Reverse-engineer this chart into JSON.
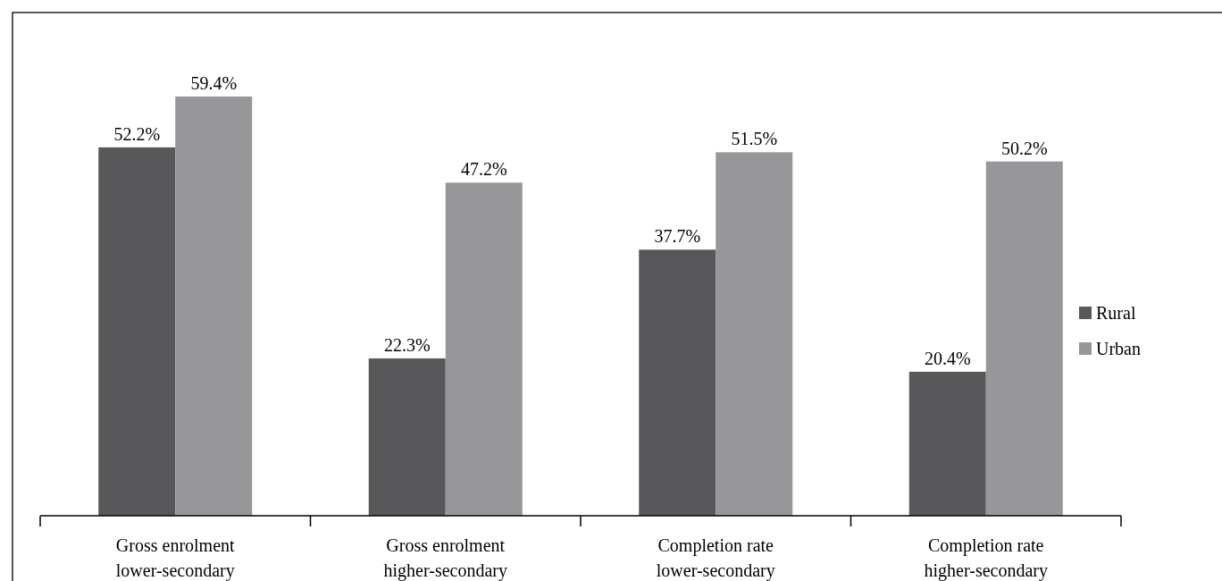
{
  "chart_data": {
    "type": "bar",
    "categories": [
      "Gross enrolment\nlower-secondary",
      "Gross enrolment\nhigher-secondary",
      "Completion rate\nlower-secondary",
      "Completion rate\nhigher-secondary"
    ],
    "series": [
      {
        "name": "Rural",
        "color": "#58585a",
        "values": [
          52.2,
          22.3,
          37.7,
          20.4
        ],
        "value_labels": [
          "52.2%",
          "22.3%",
          "37.7%",
          "20.4%"
        ]
      },
      {
        "name": "Urban",
        "color": "#97979a",
        "values": [
          59.4,
          47.2,
          51.5,
          50.2
        ],
        "value_labels": [
          "59.4%",
          "47.2%",
          "51.5%",
          "50.2%"
        ]
      }
    ],
    "legend": "right"
  }
}
